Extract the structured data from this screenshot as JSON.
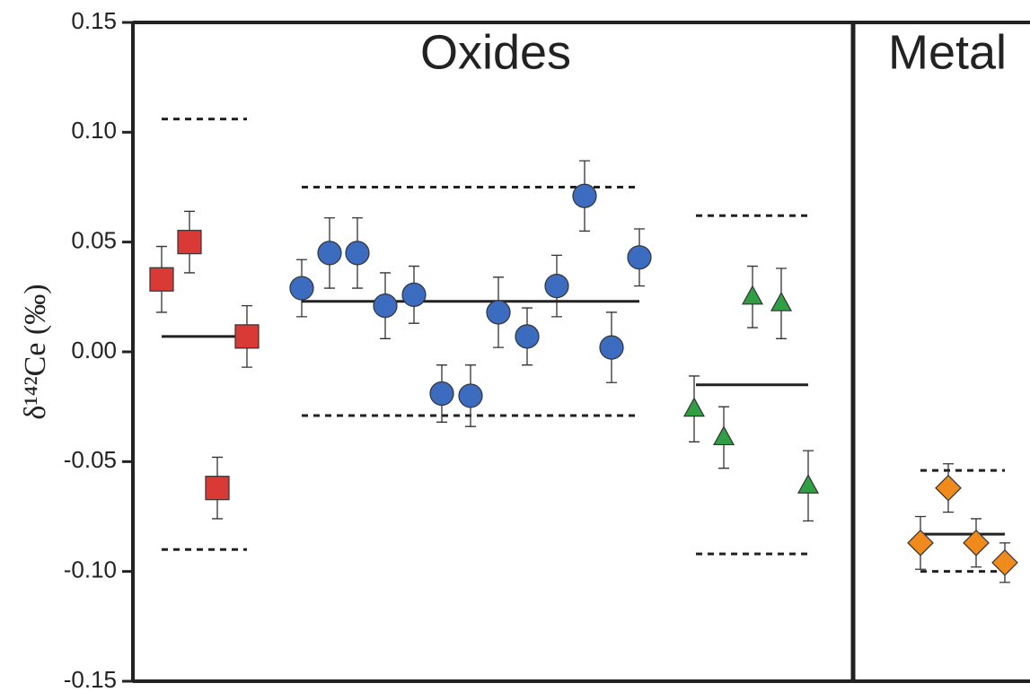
{
  "chart_data": {
    "type": "scatter",
    "ylabel": "δ¹⁴²Ce (‰)",
    "ylim": [
      -0.15,
      0.15
    ],
    "yticks": [
      0.15,
      {
        "value": 0.1,
        "label": "0.10"
      },
      0.05,
      {
        "value": 0,
        "label": "0.00"
      },
      -0.05,
      {
        "value": -0.1,
        "label": "-0.10"
      },
      -0.15
    ],
    "annotations": [
      "Oxides",
      "Metal"
    ],
    "series": [
      {
        "marker": "square",
        "color": "#d93a35",
        "values": [
          0.033,
          0.05,
          -0.062,
          0.007
        ],
        "errors": [
          0.015,
          0.014,
          0.014,
          0.014
        ],
        "mean": 0.007,
        "upper": 0.106,
        "lower": -0.09
      },
      {
        "marker": "circle",
        "color": "#3b6cc0",
        "values": [
          0.029,
          0.045,
          0.045,
          0.021,
          0.026,
          -0.019,
          -0.02,
          0.018,
          0.007,
          0.03,
          0.071,
          0.002,
          0.043
        ],
        "errors": [
          0.013,
          0.016,
          0.016,
          0.015,
          0.013,
          0.013,
          0.014,
          0.016,
          0.013,
          0.014,
          0.016,
          0.016,
          0.013
        ],
        "mean": 0.023,
        "upper": 0.075,
        "lower": -0.029
      },
      {
        "marker": "triangle",
        "color": "#2ea043",
        "values": [
          -0.026,
          -0.039,
          0.025,
          0.022,
          -0.061
        ],
        "errors": [
          0.015,
          0.014,
          0.014,
          0.016,
          0.016
        ],
        "mean": -0.015,
        "upper": 0.062,
        "lower": -0.092
      },
      {
        "marker": "diamond",
        "color": "#f08a1c",
        "values": [
          -0.087,
          -0.062,
          -0.087,
          -0.096
        ],
        "errors": [
          0.012,
          0.011,
          0.011,
          0.009
        ],
        "mean": -0.083,
        "upper": -0.054,
        "lower": -0.1
      }
    ]
  }
}
